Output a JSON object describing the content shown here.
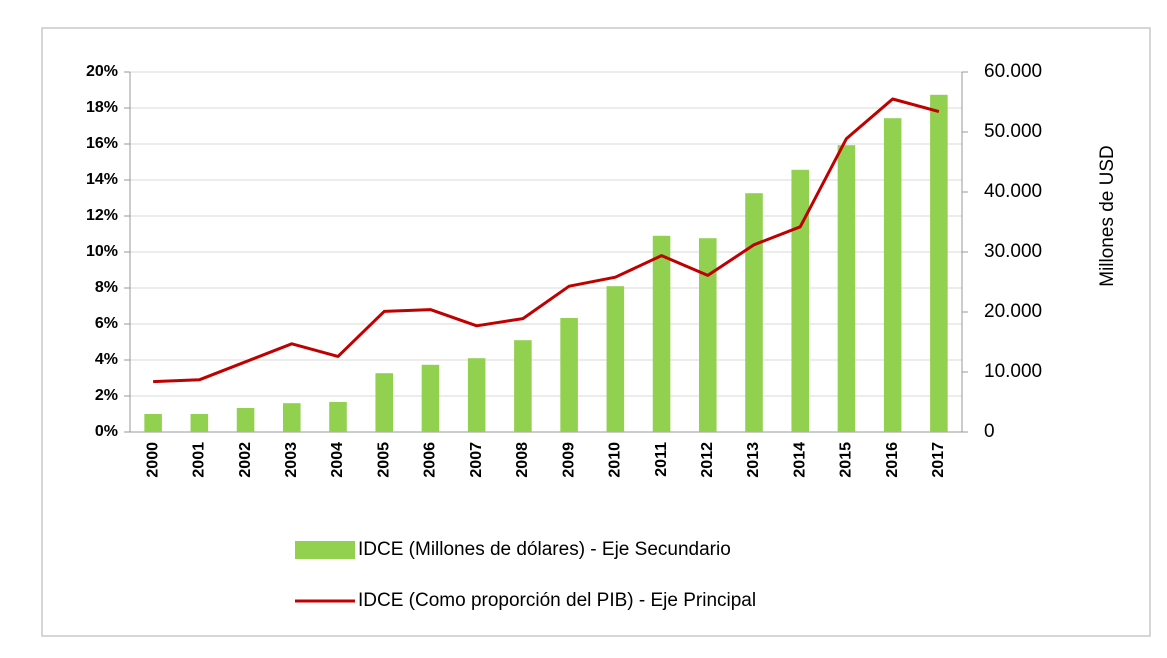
{
  "chart_data": {
    "type": "bar",
    "categories": [
      "2000",
      "2001",
      "2002",
      "2003",
      "2004",
      "2005",
      "2006",
      "2007",
      "2008",
      "2009",
      "2010",
      "2011",
      "2012",
      "2013",
      "2014",
      "2015",
      "2016",
      "2017"
    ],
    "series": [
      {
        "name": "IDCE (Millones de dólares) - Eje Secundario",
        "type": "bar",
        "axis": "y2",
        "color": "#92d050",
        "values": [
          3000,
          3000,
          4000,
          4800,
          5000,
          9800,
          11200,
          12300,
          15300,
          19000,
          24300,
          32700,
          32300,
          39800,
          43700,
          47800,
          52300,
          56200
        ]
      },
      {
        "name": "IDCE (Como proporción del PIB) - Eje Principal",
        "type": "line",
        "axis": "y",
        "color": "#c00000",
        "values": [
          2.8,
          2.9,
          3.9,
          4.9,
          4.2,
          6.7,
          6.8,
          5.9,
          6.3,
          8.1,
          8.6,
          9.8,
          8.7,
          10.4,
          11.4,
          16.3,
          18.5,
          17.8
        ]
      }
    ],
    "ylim": [
      0,
      20
    ],
    "yticks": [
      {
        "value": 0,
        "label": "0%"
      },
      {
        "value": 2,
        "label": "2%"
      },
      {
        "value": 4,
        "label": "4%"
      },
      {
        "value": 6,
        "label": "6%"
      },
      {
        "value": 8,
        "label": "8%"
      },
      {
        "value": 10,
        "label": "10%"
      },
      {
        "value": 12,
        "label": "12%"
      },
      {
        "value": 14,
        "label": "14%"
      },
      {
        "value": 16,
        "label": "16%"
      },
      {
        "value": 18,
        "label": "18%"
      },
      {
        "value": 20,
        "label": "20%"
      }
    ],
    "y2lim": [
      0,
      60000
    ],
    "y2ticks": [
      0,
      {
        "value": 10000,
        "label": "10.000"
      },
      {
        "value": 20000,
        "label": "20.000"
      },
      {
        "value": 30000,
        "label": "30.000"
      },
      {
        "value": 40000,
        "label": "40.000"
      },
      {
        "value": 50000,
        "label": "50.000"
      },
      {
        "value": 60000,
        "label": "60.000"
      }
    ],
    "y2label": "Millones de USD",
    "grid": true
  }
}
